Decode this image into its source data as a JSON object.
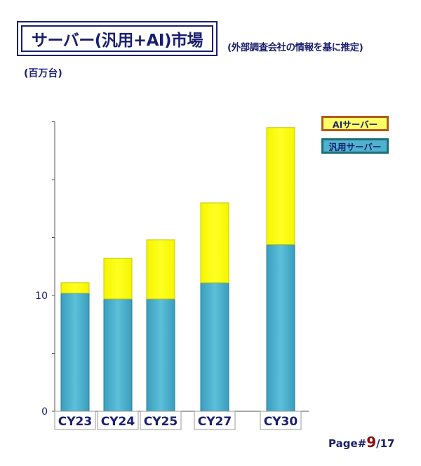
{
  "header": {
    "title": "サーバー(汎用+AI)市場",
    "subtitle": "(外部調査会社の情報を基に推定)",
    "unit": "(百万台)"
  },
  "legend": {
    "ai_label": "AIサーバー",
    "general_label": "汎用サーバー"
  },
  "footer": {
    "page_prefix": "Page#",
    "page_current": "9",
    "page_total": "/17"
  },
  "chart_data": {
    "type": "bar",
    "stacked": true,
    "categories": [
      "CY23",
      "CY24",
      "CY25",
      "CY27",
      "CY30"
    ],
    "series": [
      {
        "name": "汎用サーバー",
        "values": [
          10.2,
          9.7,
          9.7,
          11.1,
          14.4
        ],
        "color": "#4fb3cf"
      },
      {
        "name": "AIサーバー",
        "values": [
          0.9,
          3.5,
          5.1,
          6.9,
          10.1
        ],
        "color": "#ffff00"
      }
    ],
    "yticks": [
      0,
      10
    ],
    "ylim": [
      0,
      25
    ],
    "grid": false,
    "legend_position": "top-right"
  }
}
